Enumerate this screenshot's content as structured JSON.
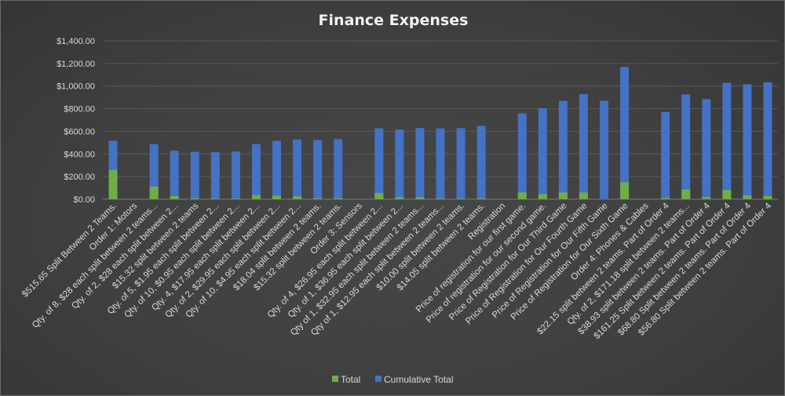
{
  "colors": {
    "total": "#70ad47",
    "cumulative": "#4472c4",
    "grid": "#5a5a5a",
    "text": "#d9d9d9"
  },
  "chart_data": {
    "type": "bar",
    "title": "Finance Expenses",
    "xlabel": "",
    "ylabel": "",
    "ylim": [
      0,
      1400
    ],
    "yticks": [
      0,
      200,
      400,
      600,
      800,
      1000,
      1200,
      1400
    ],
    "ytick_labels": [
      "$0.00",
      "$200.00",
      "$400.00",
      "$600.00",
      "$800.00",
      "$1,000.00",
      "$1,200.00",
      "$1,400.00"
    ],
    "grid": true,
    "legend_position": "bottom",
    "categories": [
      "$515.65 Split Between 2 Teams.",
      "Order 1: Motors",
      "Qty. of 8, $28 each split between 2 teams...",
      "Qty. of 2, $28 each split between 2...",
      "$15.32 split between 2 teams",
      "Qty. of 5, $1.95 each split between 2...",
      "Qty. of 10, $0.95 each split between 2...",
      "Qty. 4, $17.95 each split between 2...",
      "Qty. of 2, $29.95 each split between 2...",
      "Qty. of 10, $4.95 each split between 2...",
      "$18.04 split between 2 teams.",
      "$15.32 split between 2 teams.",
      "Order 3: Sensors",
      "Qty. of 4, $26.95 each split between 2...",
      "Qty. of 1, $36.95 each split between 2...",
      "Qty of 1, $32.95 each split between 2 teams...",
      "Qty of 1, $12.95 each split between 2 teams...",
      "$10.00 split between 2 teams.",
      "$14.05 split between 2 teams.",
      "Registration",
      "Price of registration for our first game.",
      "Price of registration for our second game.",
      "Price of Registration for Our Third Game",
      "Price of Registration for Our Fourth Game",
      "Price of Registration for Our Fifth Game",
      "Price of Registration for Our Sixth Game",
      "Order 4: Phones & Cables",
      "$22.15 split between 2 teams. Part of Order 4",
      "Qty. of 2, $171.18 split between 2 teams...",
      "$38.93 split between 2 teams. Part of Order 4",
      "$161.25 Split between 2 teams. Part of Order 4",
      "$68.80 Split between 2 teams. Part of Order 4",
      "$56.80 Split between 2 teams. Part of Order 4"
    ],
    "series": [
      {
        "name": "Total",
        "values": [
          258,
          null,
          112,
          28,
          8,
          5,
          5,
          36,
          30,
          25,
          9,
          8,
          null,
          54,
          18,
          16,
          6,
          5,
          7,
          null,
          60,
          45,
          60,
          60,
          0,
          150,
          null,
          11,
          86,
          19,
          81,
          34,
          28
        ]
      },
      {
        "name": "Cumulative Total",
        "values": [
          516,
          null,
          486,
          429,
          418,
          415,
          421,
          486,
          516,
          527,
          522,
          531,
          null,
          626,
          615,
          629,
          625,
          629,
          648,
          null,
          759,
          803,
          869,
          929,
          869,
          1169,
          null,
          770,
          926,
          884,
          1028,
          1016,
          1033
        ]
      }
    ]
  }
}
